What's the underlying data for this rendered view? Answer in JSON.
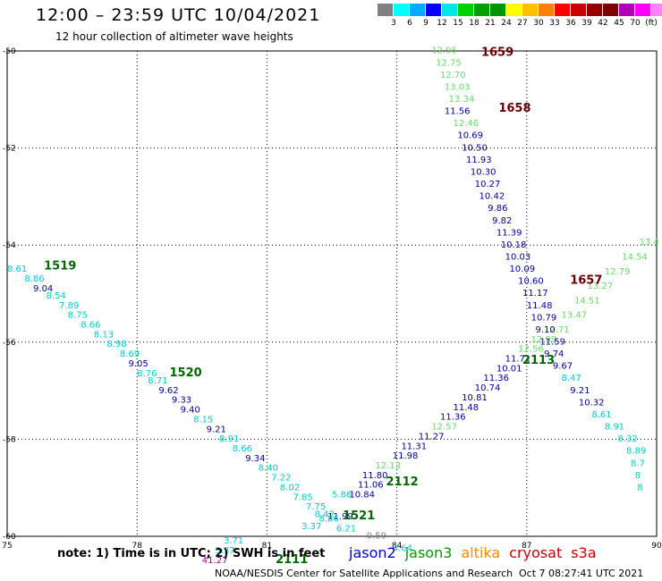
{
  "header": {
    "title": "12:00 – 23:59 UTC 10/04/2021",
    "subtitle": "12 hour collection of altimeter wave heights"
  },
  "color_scale": {
    "colors": [
      "#808080",
      "#00ffff",
      "#00aaff",
      "#0000ff",
      "#00e6e6",
      "#00d200",
      "#00a000",
      "#009600",
      "#ffff00",
      "#ffc000",
      "#ff8000",
      "#ff0000",
      "#c80000",
      "#960000",
      "#800000",
      "#b400b4",
      "#ff00ff",
      "#ff80ff"
    ],
    "labels": [
      "3",
      "6",
      "9",
      "12",
      "15",
      "18",
      "21",
      "24",
      "27",
      "30",
      "33",
      "36",
      "39",
      "42",
      "45",
      "70",
      "(ft)"
    ]
  },
  "footer": {
    "note": "note: 1) Time is in UTC; 2) SWH is in feet",
    "credit": "NOAA/NESDIS Center for Satellite Applications and Research",
    "timestamp": "Oct  7 08:27:41 UTC 2021",
    "legend": [
      {
        "name": "jason2",
        "color": "#0000cc"
      },
      {
        "name": "jason3",
        "color": "#009900"
      },
      {
        "name": "altika",
        "color": "#ff8800"
      },
      {
        "name": "cryosat",
        "color": "#cc0000"
      },
      {
        "name": "s3a",
        "color": "#cc0000"
      }
    ]
  },
  "chart_data": {
    "type": "scatter",
    "xlim": [
      75,
      90
    ],
    "ylim": [
      -60,
      -50
    ],
    "xticks": [
      75,
      78,
      81,
      84,
      87,
      90
    ],
    "yticks": [
      -50,
      -52,
      -54,
      -56,
      -58,
      -60
    ],
    "xtick_labels": [
      "75",
      "78",
      "81",
      "84",
      "87",
      "90"
    ],
    "ytick_labels": [
      "-50",
      "-52",
      "-54",
      "-56",
      "-58",
      "-60"
    ],
    "grid": true,
    "point_labels": [
      {
        "x": 75.0,
        "y": -54.55,
        "v": "8.61",
        "c": "#00cccc"
      },
      {
        "x": 75.4,
        "y": -54.75,
        "v": "8.86",
        "c": "#00cccc"
      },
      {
        "x": 75.6,
        "y": -54.95,
        "v": "9.04",
        "c": "#000099"
      },
      {
        "x": 75.9,
        "y": -55.1,
        "v": "8.54",
        "c": "#00cccc"
      },
      {
        "x": 76.2,
        "y": -55.3,
        "v": "7.89",
        "c": "#00cccc"
      },
      {
        "x": 76.4,
        "y": -55.5,
        "v": "8.75",
        "c": "#00cccc"
      },
      {
        "x": 76.7,
        "y": -55.7,
        "v": "8.66",
        "c": "#00cccc"
      },
      {
        "x": 77.0,
        "y": -55.9,
        "v": "8.13",
        "c": "#00cccc"
      },
      {
        "x": 77.3,
        "y": -56.1,
        "v": "8.98",
        "c": "#00cccc"
      },
      {
        "x": 77.6,
        "y": -56.3,
        "v": "8.69",
        "c": "#00cccc"
      },
      {
        "x": 77.8,
        "y": -56.5,
        "v": "9.05",
        "c": "#000099"
      },
      {
        "x": 78.0,
        "y": -56.7,
        "v": "8.76",
        "c": "#00cccc"
      },
      {
        "x": 78.25,
        "y": -56.85,
        "v": "8.71",
        "c": "#00cccc"
      },
      {
        "x": 78.5,
        "y": -57.05,
        "v": "9.62",
        "c": "#000099"
      },
      {
        "x": 78.8,
        "y": -57.25,
        "v": "9.33",
        "c": "#000099"
      },
      {
        "x": 79.0,
        "y": -57.45,
        "v": "9.40",
        "c": "#000099"
      },
      {
        "x": 79.3,
        "y": -57.65,
        "v": "8.15",
        "c": "#00cccc"
      },
      {
        "x": 79.6,
        "y": -57.85,
        "v": "9.21",
        "c": "#000099"
      },
      {
        "x": 79.9,
        "y": -58.05,
        "v": "8.91",
        "c": "#00cccc"
      },
      {
        "x": 80.2,
        "y": -58.25,
        "v": "8.66",
        "c": "#00cccc"
      },
      {
        "x": 80.5,
        "y": -58.45,
        "v": "9.34",
        "c": "#000099"
      },
      {
        "x": 80.8,
        "y": -58.65,
        "v": "8.40",
        "c": "#00cccc"
      },
      {
        "x": 81.1,
        "y": -58.85,
        "v": "7.22",
        "c": "#00cccc"
      },
      {
        "x": 81.3,
        "y": -59.05,
        "v": "8.02",
        "c": "#00cccc"
      },
      {
        "x": 81.6,
        "y": -59.25,
        "v": "7.85",
        "c": "#00cccc"
      },
      {
        "x": 81.9,
        "y": -59.45,
        "v": "7.75",
        "c": "#00cccc"
      },
      {
        "x": 82.1,
        "y": -59.6,
        "v": "8.42",
        "c": "#00cccc"
      },
      {
        "x": 82.4,
        "y": -59.65,
        "v": "11.99",
        "c": "#000099"
      },
      {
        "x": 82.2,
        "y": -59.7,
        "v": "8.86",
        "c": "#00cccc"
      },
      {
        "x": 82.5,
        "y": -59.2,
        "v": "5.86",
        "c": "#00cccc"
      },
      {
        "x": 81.8,
        "y": -59.85,
        "v": "3.37",
        "c": "#00cccc"
      },
      {
        "x": 82.6,
        "y": -59.9,
        "v": "6.21",
        "c": "#00cccc"
      },
      {
        "x": 83.3,
        "y": -60.05,
        "v": "0.59",
        "c": "#808080"
      },
      {
        "x": 83.9,
        "y": -60.3,
        "v": "4.64",
        "c": "#00cccc"
      },
      {
        "x": 80.0,
        "y": -60.15,
        "v": "3.71",
        "c": "#00cccc"
      },
      {
        "x": 79.8,
        "y": -60.35,
        "v": "3.37",
        "c": "#00cccc"
      },
      {
        "x": 79.5,
        "y": -60.55,
        "v": "41.27",
        "c": "#990099"
      },
      {
        "x": 82.9,
        "y": -59.2,
        "v": "10.84",
        "c": "#000099"
      },
      {
        "x": 83.1,
        "y": -59.0,
        "v": "11.06",
        "c": "#000099"
      },
      {
        "x": 83.2,
        "y": -58.8,
        "v": "11.80",
        "c": "#000099"
      },
      {
        "x": 83.5,
        "y": -58.6,
        "v": "12.13",
        "c": "#66dd66"
      },
      {
        "x": 83.9,
        "y": -58.4,
        "v": "11.98",
        "c": "#000099"
      },
      {
        "x": 84.1,
        "y": -58.2,
        "v": "11.31",
        "c": "#000099"
      },
      {
        "x": 84.5,
        "y": -58.0,
        "v": "11.27",
        "c": "#000099"
      },
      {
        "x": 84.8,
        "y": -57.8,
        "v": "12.57",
        "c": "#66dd66"
      },
      {
        "x": 85.0,
        "y": -57.6,
        "v": "11.36",
        "c": "#000099"
      },
      {
        "x": 85.3,
        "y": -57.4,
        "v": "11.48",
        "c": "#000099"
      },
      {
        "x": 85.5,
        "y": -57.2,
        "v": "10.81",
        "c": "#000099"
      },
      {
        "x": 85.8,
        "y": -57.0,
        "v": "10.74",
        "c": "#000099"
      },
      {
        "x": 86.0,
        "y": -56.8,
        "v": "11.36",
        "c": "#000099"
      },
      {
        "x": 86.3,
        "y": -56.6,
        "v": "10.01",
        "c": "#000099"
      },
      {
        "x": 86.5,
        "y": -56.4,
        "v": "11.71",
        "c": "#000099"
      },
      {
        "x": 86.8,
        "y": -56.2,
        "v": "12.56",
        "c": "#66dd66"
      },
      {
        "x": 87.1,
        "y": -56.0,
        "v": "12.99",
        "c": "#66dd66"
      },
      {
        "x": 87.4,
        "y": -55.8,
        "v": "12.71",
        "c": "#66dd66"
      },
      {
        "x": 87.8,
        "y": -55.5,
        "v": "13.47",
        "c": "#66dd66"
      },
      {
        "x": 88.1,
        "y": -55.2,
        "v": "14.51",
        "c": "#66dd66"
      },
      {
        "x": 88.4,
        "y": -54.9,
        "v": "13.27",
        "c": "#66dd66"
      },
      {
        "x": 88.8,
        "y": -54.6,
        "v": "12.79",
        "c": "#66dd66"
      },
      {
        "x": 89.2,
        "y": -54.3,
        "v": "14.54",
        "c": "#66dd66"
      },
      {
        "x": 89.6,
        "y": -54.0,
        "v": "13.4",
        "c": "#66dd66"
      },
      {
        "x": 84.8,
        "y": -50.05,
        "v": "12.95",
        "c": "#66dd66"
      },
      {
        "x": 84.9,
        "y": -50.3,
        "v": "12.75",
        "c": "#66dd66"
      },
      {
        "x": 85.0,
        "y": -50.55,
        "v": "12.70",
        "c": "#66dd66"
      },
      {
        "x": 85.1,
        "y": -50.8,
        "v": "13.03",
        "c": "#66dd66"
      },
      {
        "x": 85.2,
        "y": -51.05,
        "v": "13.34",
        "c": "#66dd66"
      },
      {
        "x": 85.1,
        "y": -51.3,
        "v": "11.56",
        "c": "#000099"
      },
      {
        "x": 85.3,
        "y": -51.55,
        "v": "12.46",
        "c": "#66dd66"
      },
      {
        "x": 85.4,
        "y": -51.8,
        "v": "10.69",
        "c": "#000099"
      },
      {
        "x": 85.5,
        "y": -52.05,
        "v": "10.50",
        "c": "#000099"
      },
      {
        "x": 85.6,
        "y": -52.3,
        "v": "11.93",
        "c": "#000099"
      },
      {
        "x": 85.7,
        "y": -52.55,
        "v": "10.30",
        "c": "#000099"
      },
      {
        "x": 85.8,
        "y": -52.8,
        "v": "10.27",
        "c": "#000099"
      },
      {
        "x": 85.9,
        "y": -53.05,
        "v": "10.42",
        "c": "#000099"
      },
      {
        "x": 86.1,
        "y": -53.3,
        "v": "9.86",
        "c": "#000099"
      },
      {
        "x": 86.2,
        "y": -53.55,
        "v": "9.82",
        "c": "#000099"
      },
      {
        "x": 86.3,
        "y": -53.8,
        "v": "11.39",
        "c": "#000099"
      },
      {
        "x": 86.4,
        "y": -54.05,
        "v": "10.18",
        "c": "#000099"
      },
      {
        "x": 86.5,
        "y": -54.3,
        "v": "10.03",
        "c": "#000099"
      },
      {
        "x": 86.6,
        "y": -54.55,
        "v": "10.09",
        "c": "#000099"
      },
      {
        "x": 86.8,
        "y": -54.8,
        "v": "10.60",
        "c": "#000099"
      },
      {
        "x": 86.9,
        "y": -55.05,
        "v": "11.17",
        "c": "#000099"
      },
      {
        "x": 87.0,
        "y": -55.3,
        "v": "11.48",
        "c": "#000099"
      },
      {
        "x": 87.1,
        "y": -55.55,
        "v": "10.79",
        "c": "#000099"
      },
      {
        "x": 87.2,
        "y": -55.8,
        "v": "9.10",
        "c": "#000099"
      },
      {
        "x": 87.3,
        "y": -56.05,
        "v": "11.59",
        "c": "#000099"
      },
      {
        "x": 87.4,
        "y": -56.3,
        "v": "9.74",
        "c": "#000099"
      },
      {
        "x": 87.6,
        "y": -56.55,
        "v": "9.67",
        "c": "#000099"
      },
      {
        "x": 87.8,
        "y": -56.8,
        "v": "8.47",
        "c": "#00cccc"
      },
      {
        "x": 88.0,
        "y": -57.05,
        "v": "9.21",
        "c": "#000099"
      },
      {
        "x": 88.2,
        "y": -57.3,
        "v": "10.32",
        "c": "#000099"
      },
      {
        "x": 88.5,
        "y": -57.55,
        "v": "8.61",
        "c": "#00cccc"
      },
      {
        "x": 88.8,
        "y": -57.8,
        "v": "8.91",
        "c": "#00cccc"
      },
      {
        "x": 89.1,
        "y": -58.05,
        "v": "8.32",
        "c": "#00cccc"
      },
      {
        "x": 89.3,
        "y": -58.3,
        "v": "8.89",
        "c": "#00cccc"
      },
      {
        "x": 89.4,
        "y": -58.55,
        "v": "8.7",
        "c": "#00cccc"
      },
      {
        "x": 89.5,
        "y": -58.8,
        "v": "8",
        "c": "#00cccc"
      },
      {
        "x": 89.55,
        "y": -59.05,
        "v": "8",
        "c": "#00cccc"
      }
    ],
    "time_labels": [
      {
        "x": 75.85,
        "y": -54.5,
        "v": "1519",
        "c": "#006600"
      },
      {
        "x": 78.75,
        "y": -56.7,
        "v": "1520",
        "c": "#006600"
      },
      {
        "x": 82.75,
        "y": -59.65,
        "v": "1521",
        "c": "#006600"
      },
      {
        "x": 81.2,
        "y": -60.55,
        "v": "2111",
        "c": "#006600"
      },
      {
        "x": 83.75,
        "y": -58.95,
        "v": "2112",
        "c": "#006600"
      },
      {
        "x": 86.9,
        "y": -56.45,
        "v": "2113",
        "c": "#006600"
      },
      {
        "x": 85.95,
        "y": -50.1,
        "v": "1659",
        "c": "#660000"
      },
      {
        "x": 86.35,
        "y": -51.25,
        "v": "1658",
        "c": "#660000"
      },
      {
        "x": 88.0,
        "y": -54.8,
        "v": "1657",
        "c": "#660000"
      }
    ]
  }
}
